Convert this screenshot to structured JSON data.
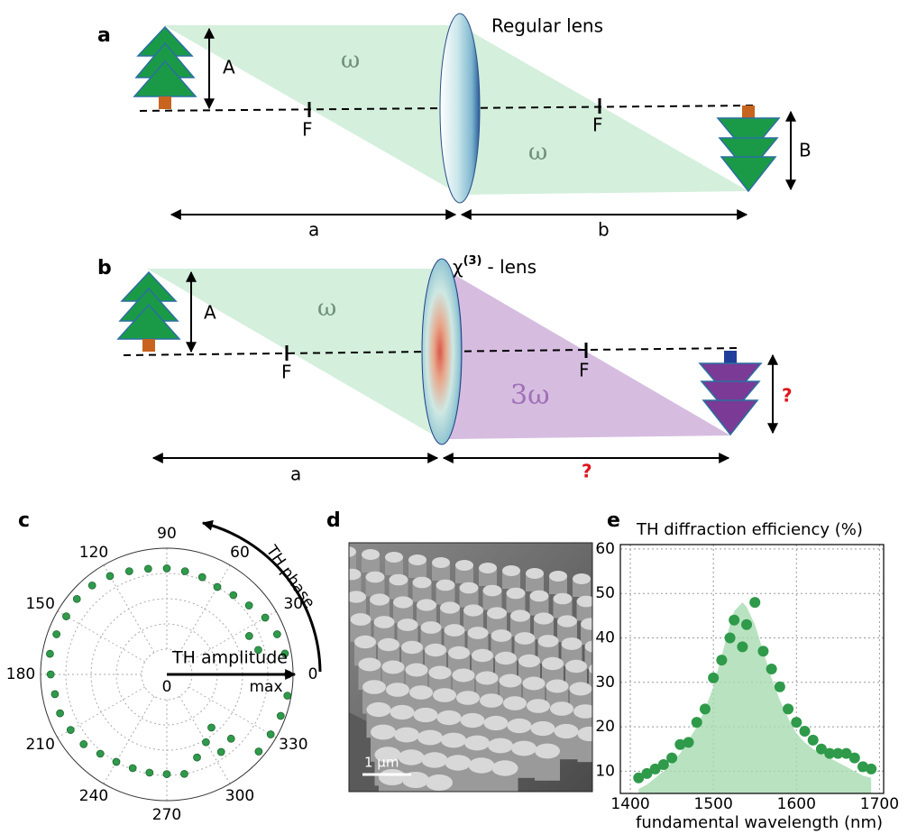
{
  "panel_labels": [
    "a",
    "b",
    "c",
    "d",
    "e"
  ],
  "diagram_a": {
    "lens_label": "Regular lens",
    "object_height": "A",
    "image_height": "B",
    "focus_left": "F",
    "focus_right": "F",
    "frequency_left": "ω",
    "frequency_right": "ω",
    "object_distance": "a",
    "image_distance": "b"
  },
  "diagram_b": {
    "lens_symbol": "χ",
    "lens_superscript": "(3)",
    "lens_text": "- lens",
    "object_height": "A",
    "image_height": "?",
    "focus_left": "F",
    "focus_right": "F",
    "frequency_left": "ω",
    "frequency_right": "3ω",
    "object_distance": "a",
    "image_distance": "?"
  },
  "image_d": {
    "scale_bar": "1 µm"
  },
  "chart_data": [
    {
      "type": "polar",
      "annotations": [
        "TH amplitude",
        "TH phase"
      ],
      "color": "#2e9a4a",
      "x": [
        0,
        10,
        15,
        20,
        25,
        30,
        40,
        50,
        60,
        70,
        80,
        90,
        100,
        110,
        120,
        130,
        140,
        150,
        160,
        170,
        180,
        190,
        200,
        210,
        220,
        230,
        240,
        250,
        260,
        270,
        280,
        290,
        300,
        305,
        310,
        315,
        320,
        330,
        340,
        350
      ],
      "values": [
        0.96,
        0.95,
        0.75,
        0.93,
        0.72,
        0.9,
        0.85,
        0.82,
        0.8,
        0.82,
        0.83,
        0.84,
        0.85,
        0.87,
        0.9,
        0.92,
        0.93,
        0.92,
        0.93,
        0.94,
        0.92,
        0.9,
        0.9,
        0.88,
        0.86,
        0.82,
        0.8,
        0.79,
        0.79,
        0.79,
        0.8,
        0.7,
        0.62,
        0.75,
        0.55,
        0.72,
        0.95,
        0.95,
        0.96,
        0.97
      ],
      "xticks": [
        0,
        30,
        60,
        90,
        120,
        150,
        180,
        210,
        240,
        270,
        300,
        330
      ],
      "rlim": [
        0,
        1
      ],
      "rticks": [
        0,
        {
          "value": 1,
          "label": "max"
        }
      ],
      "rgrid": [
        0.2,
        0.4,
        0.6,
        0.8
      ]
    },
    {
      "type": "scatter",
      "title": "TH diffraction efficiency (%)",
      "x_label": "fundamental wavelength (nm)",
      "x": [
        1410,
        1420,
        1430,
        1440,
        1450,
        1460,
        1470,
        1480,
        1490,
        1500,
        1510,
        1520,
        1525,
        1535,
        1540,
        1550,
        1560,
        1570,
        1580,
        1590,
        1600,
        1610,
        1620,
        1630,
        1640,
        1650,
        1660,
        1670,
        1680,
        1690
      ],
      "series": [
        {
          "style": "area",
          "color": "#a8dbb0",
          "values": [
            6,
            7,
            8.5,
            10,
            12,
            14,
            17,
            20,
            24,
            29,
            36,
            43,
            46,
            48,
            47,
            43,
            37,
            31,
            26,
            22,
            18.5,
            16.5,
            15,
            14,
            13,
            12,
            11,
            10,
            9,
            8.5
          ]
        },
        {
          "style": "points",
          "color": "#2e9a4a",
          "values": [
            8.5,
            9.5,
            10.5,
            11.5,
            13,
            16,
            16.5,
            21,
            24,
            31,
            35,
            40,
            44,
            38,
            43,
            48,
            37,
            33,
            29,
            24,
            21,
            19,
            17,
            15,
            14,
            14,
            14,
            13,
            11,
            10.5
          ]
        }
      ],
      "xlim": [
        1388,
        1705
      ],
      "xticks": [
        1400,
        1500,
        1600,
        1700
      ],
      "ylim": [
        5,
        61
      ],
      "yticks": [
        10,
        20,
        30,
        40,
        50,
        60
      ],
      "grid": true
    }
  ]
}
